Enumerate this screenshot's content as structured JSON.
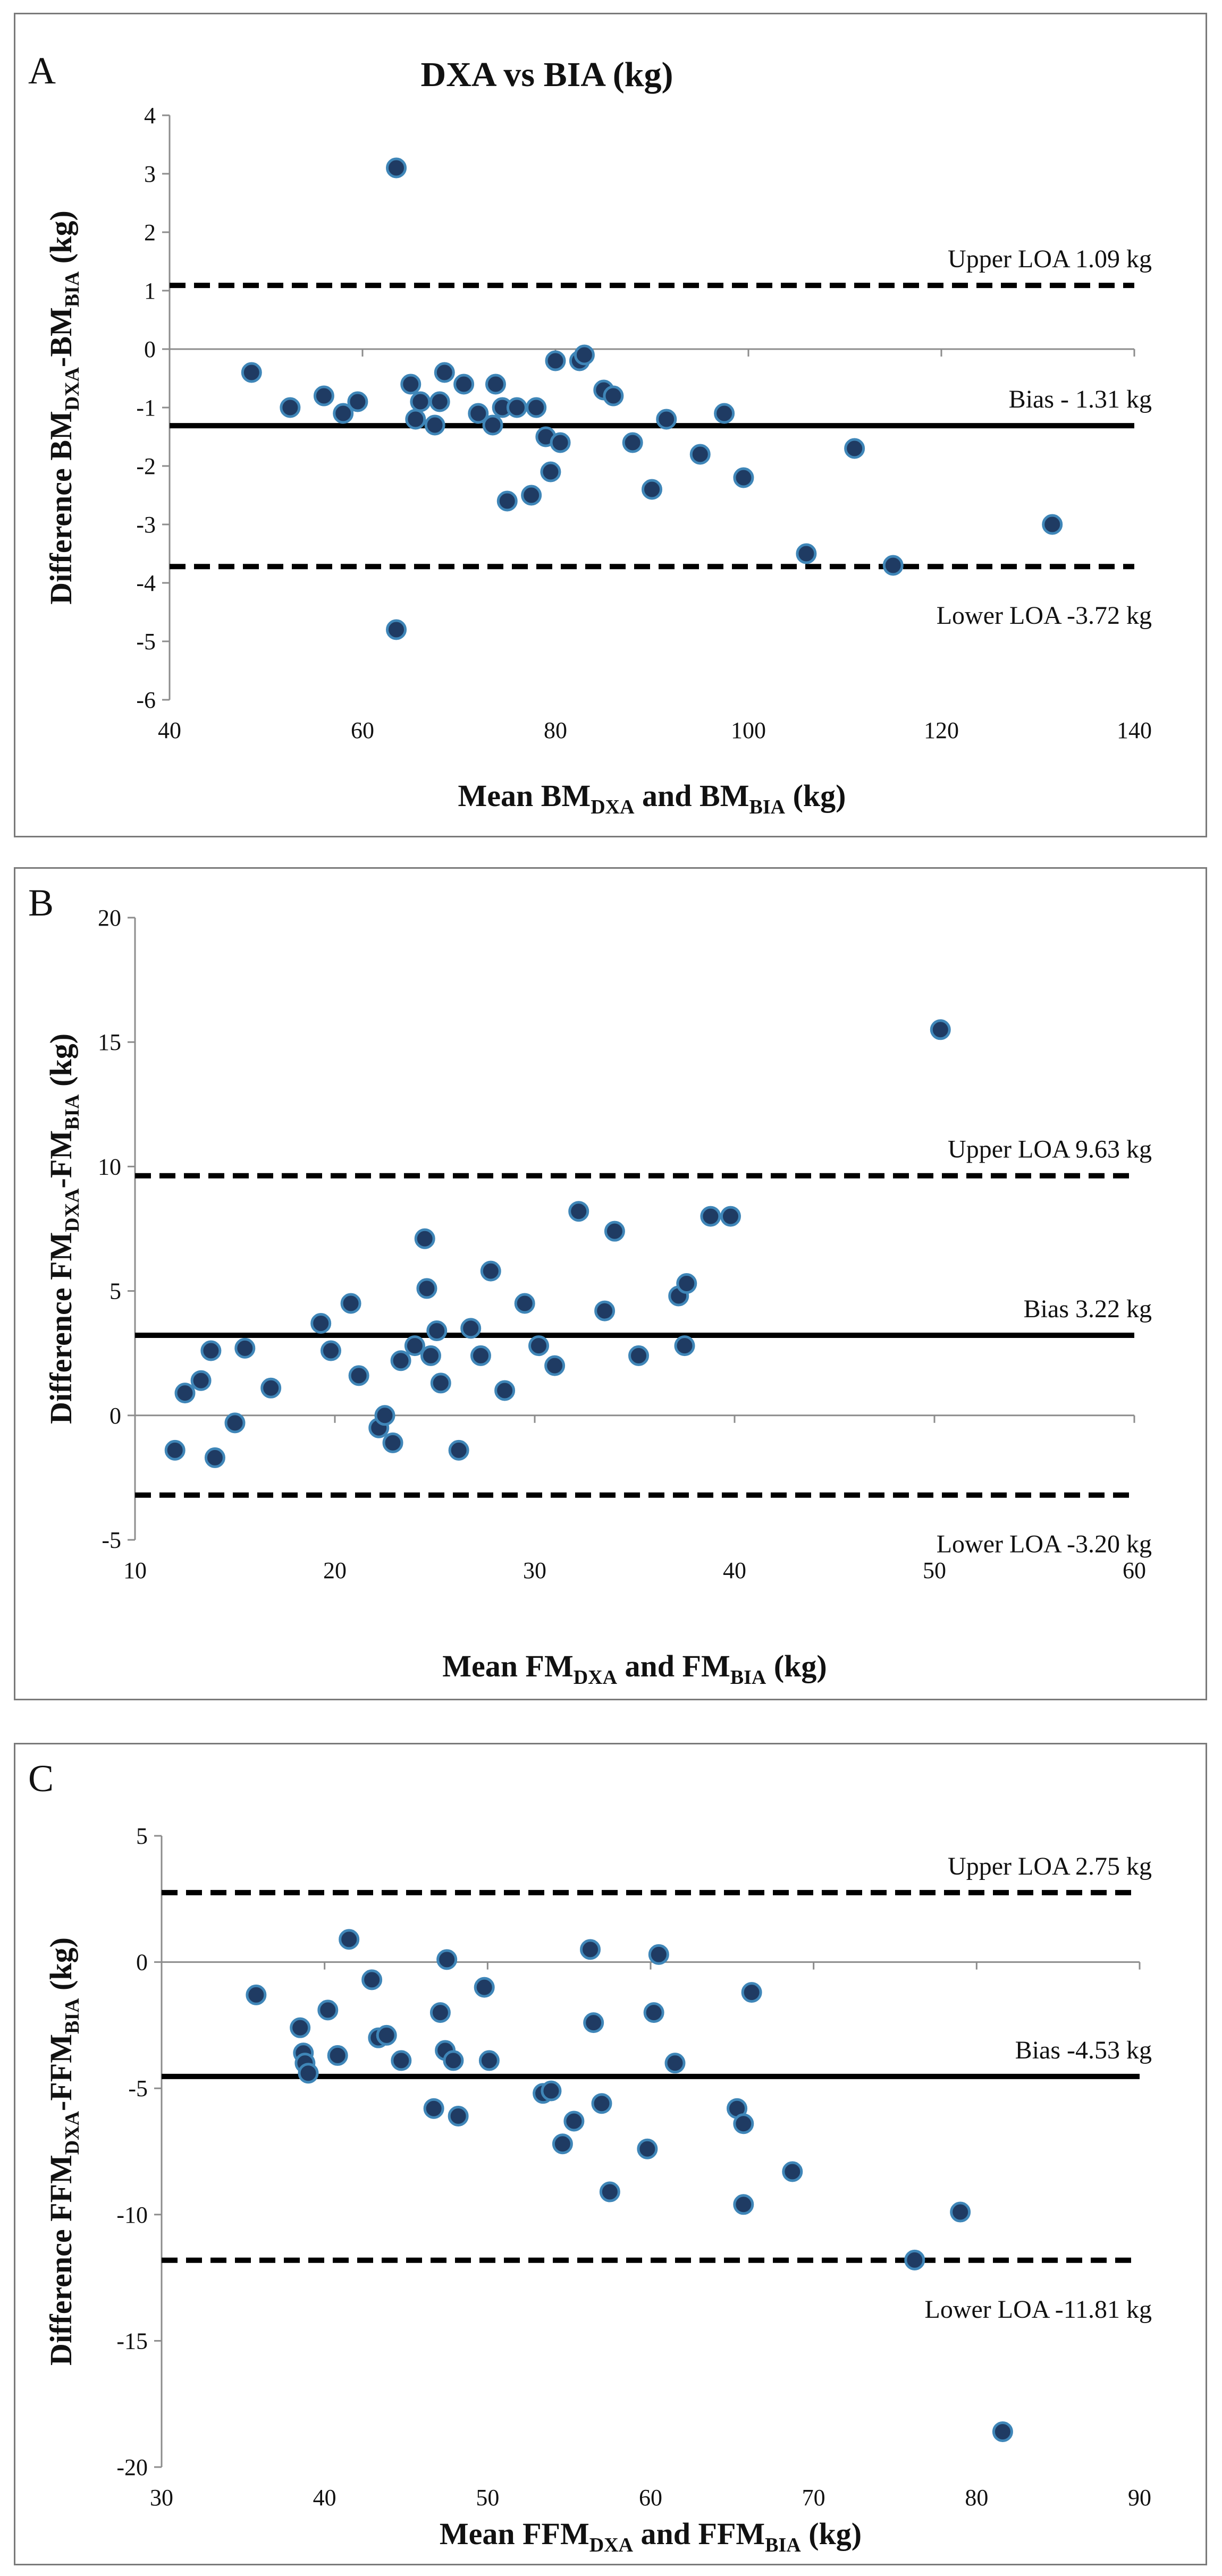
{
  "figure": {
    "title": "DXA vs BIA (kg)"
  },
  "colors": {
    "point_fill": "#1f3b63",
    "point_stroke": "#3f86b8",
    "line": "#000000",
    "axis": "#8c8c8c"
  },
  "chart_data": [
    {
      "type": "scatter",
      "panel_letter": "A",
      "title": "DXA vs BIA (kg)",
      "xlabel": {
        "main1": "Mean BM",
        "sub1": "DXA",
        "main2": " and BM",
        "sub2": "BIA",
        "tail": " (kg)"
      },
      "ylabel": {
        "main1": "Difference BM",
        "sub1": "DXA",
        "main2": "-BM",
        "sub2": "BIA",
        "tail": " (kg)"
      },
      "xlim": [
        40,
        140
      ],
      "ylim": [
        -6,
        4
      ],
      "xticks": [
        40,
        60,
        80,
        100,
        120,
        140
      ],
      "yticks": [
        -6,
        -5,
        -4,
        -3,
        -2,
        -1,
        0,
        1,
        2,
        3,
        4
      ],
      "xtick_labels": [
        "40",
        "60",
        "80",
        "100",
        "120",
        "140"
      ],
      "ytick_labels": [
        "-6",
        "-5",
        "-4",
        "-3",
        "-2",
        "-1",
        "0",
        "1",
        "2",
        "3",
        "4"
      ],
      "axis_at_y": 0,
      "lines": [
        {
          "kind": "upper",
          "value": 1.09,
          "label": "Upper LOA 1.09 kg"
        },
        {
          "kind": "bias",
          "value": -1.31,
          "label": "Bias - 1.31 kg"
        },
        {
          "kind": "lower",
          "value": -3.72,
          "label": "Lower LOA -3.72 kg"
        }
      ],
      "points": [
        [
          48.5,
          -0.4
        ],
        [
          52.5,
          -1.0
        ],
        [
          56.0,
          -0.8
        ],
        [
          58.0,
          -1.1
        ],
        [
          59.5,
          -0.9
        ],
        [
          63.5,
          3.1
        ],
        [
          63.5,
          -4.8
        ],
        [
          65.0,
          -0.6
        ],
        [
          65.5,
          -1.2
        ],
        [
          66.0,
          -0.9
        ],
        [
          67.5,
          -1.3
        ],
        [
          68.0,
          -0.9
        ],
        [
          68.5,
          -0.4
        ],
        [
          70.5,
          -0.6
        ],
        [
          72.0,
          -1.1
        ],
        [
          73.5,
          -1.3
        ],
        [
          73.8,
          -0.6
        ],
        [
          74.5,
          -1.0
        ],
        [
          75.0,
          -2.6
        ],
        [
          76.0,
          -1.0
        ],
        [
          77.5,
          -2.5
        ],
        [
          78.0,
          -1.0
        ],
        [
          79.0,
          -1.5
        ],
        [
          79.5,
          -2.1
        ],
        [
          80.0,
          -0.2
        ],
        [
          80.5,
          -1.6
        ],
        [
          82.5,
          -0.2
        ],
        [
          83.0,
          -0.1
        ],
        [
          85.0,
          -0.7
        ],
        [
          86.0,
          -0.8
        ],
        [
          88.0,
          -1.6
        ],
        [
          90.0,
          -2.4
        ],
        [
          91.5,
          -1.2
        ],
        [
          95.0,
          -1.8
        ],
        [
          97.5,
          -1.1
        ],
        [
          99.5,
          -2.2
        ],
        [
          106.0,
          -3.5
        ],
        [
          111.0,
          -1.7
        ],
        [
          115.0,
          -3.7
        ],
        [
          131.5,
          -3.0
        ]
      ]
    },
    {
      "type": "scatter",
      "panel_letter": "B",
      "xlabel": {
        "main1": "Mean FM",
        "sub1": "DXA",
        "main2": " and FM",
        "sub2": "BIA",
        "tail": " (kg)"
      },
      "ylabel": {
        "main1": "Difference FM",
        "sub1": "DXA",
        "main2": "-FM",
        "sub2": "BIA",
        "tail": " (kg)"
      },
      "xlim": [
        10,
        60
      ],
      "ylim": [
        -5,
        20
      ],
      "xticks": [
        10,
        20,
        30,
        40,
        50,
        60
      ],
      "yticks": [
        -5,
        0,
        5,
        10,
        15,
        20
      ],
      "xtick_labels": [
        "10",
        "20",
        "30",
        "40",
        "50",
        "60"
      ],
      "ytick_labels": [
        "-5",
        "0",
        "5",
        "10",
        "15",
        "20"
      ],
      "axis_at_y": 0,
      "lines": [
        {
          "kind": "upper",
          "value": 9.63,
          "label": "Upper LOA 9.63 kg"
        },
        {
          "kind": "bias",
          "value": 3.22,
          "label": "Bias 3.22 kg"
        },
        {
          "kind": "lower",
          "value": -3.2,
          "label": "Lower LOA -3.20 kg"
        }
      ],
      "points": [
        [
          12.0,
          -1.4
        ],
        [
          12.5,
          0.9
        ],
        [
          13.3,
          1.4
        ],
        [
          13.8,
          2.6
        ],
        [
          14.0,
          -1.7
        ],
        [
          15.0,
          -0.3
        ],
        [
          15.5,
          2.7
        ],
        [
          16.8,
          1.1
        ],
        [
          19.3,
          3.7
        ],
        [
          19.8,
          2.6
        ],
        [
          20.8,
          4.5
        ],
        [
          21.2,
          1.6
        ],
        [
          22.2,
          -0.5
        ],
        [
          22.5,
          0.0
        ],
        [
          22.9,
          -1.1
        ],
        [
          23.3,
          2.2
        ],
        [
          24.0,
          2.8
        ],
        [
          24.5,
          7.1
        ],
        [
          24.6,
          5.1
        ],
        [
          24.8,
          2.4
        ],
        [
          25.1,
          3.4
        ],
        [
          25.3,
          1.3
        ],
        [
          26.2,
          -1.4
        ],
        [
          26.8,
          3.5
        ],
        [
          27.3,
          2.4
        ],
        [
          27.8,
          5.8
        ],
        [
          28.5,
          1.0
        ],
        [
          29.5,
          4.5
        ],
        [
          30.2,
          2.8
        ],
        [
          31.0,
          2.0
        ],
        [
          32.2,
          8.2
        ],
        [
          33.5,
          4.2
        ],
        [
          34.0,
          7.4
        ],
        [
          35.2,
          2.4
        ],
        [
          37.2,
          4.8
        ],
        [
          37.5,
          2.8
        ],
        [
          37.6,
          5.3
        ],
        [
          38.8,
          8.0
        ],
        [
          39.8,
          8.0
        ],
        [
          50.3,
          15.5
        ]
      ]
    },
    {
      "type": "scatter",
      "panel_letter": "C",
      "xlabel": {
        "main1": "Mean FFM",
        "sub1": "DXA",
        "main2": " and FFM",
        "sub2": "BIA",
        "tail": " (kg)"
      },
      "ylabel": {
        "main1": "Difference FFM",
        "sub1": "DXA",
        "main2": "-FFM",
        "sub2": "BIA",
        "tail": " (kg)"
      },
      "xlim": [
        30,
        90
      ],
      "ylim": [
        -20,
        5
      ],
      "xticks": [
        30,
        40,
        50,
        60,
        70,
        80,
        90
      ],
      "yticks": [
        -20,
        -15,
        -10,
        -5,
        0,
        5
      ],
      "xtick_labels": [
        "30",
        "40",
        "50",
        "60",
        "70",
        "80",
        "90"
      ],
      "ytick_labels": [
        "-20",
        "-15",
        "-10",
        "-5",
        "0",
        "5"
      ],
      "axis_at_y": 0,
      "lines": [
        {
          "kind": "upper",
          "value": 2.75,
          "label": "Upper LOA 2.75 kg"
        },
        {
          "kind": "bias",
          "value": -4.53,
          "label": "Bias -4.53 kg"
        },
        {
          "kind": "lower",
          "value": -11.81,
          "label": "Lower LOA -11.81 kg"
        }
      ],
      "points": [
        [
          35.8,
          -1.3
        ],
        [
          38.5,
          -2.6
        ],
        [
          38.7,
          -3.6
        ],
        [
          38.8,
          -4.0
        ],
        [
          39.0,
          -4.4
        ],
        [
          40.2,
          -1.9
        ],
        [
          40.8,
          -3.7
        ],
        [
          41.5,
          0.9
        ],
        [
          42.9,
          -0.7
        ],
        [
          43.3,
          -3.0
        ],
        [
          43.8,
          -2.9
        ],
        [
          44.7,
          -3.9
        ],
        [
          46.7,
          -5.8
        ],
        [
          47.1,
          -2.0
        ],
        [
          47.4,
          -3.5
        ],
        [
          47.5,
          0.1
        ],
        [
          47.9,
          -3.9
        ],
        [
          48.2,
          -6.1
        ],
        [
          49.8,
          -1.0
        ],
        [
          50.1,
          -3.9
        ],
        [
          53.4,
          -5.2
        ],
        [
          53.9,
          -5.1
        ],
        [
          54.6,
          -7.2
        ],
        [
          55.3,
          -6.3
        ],
        [
          56.3,
          0.5
        ],
        [
          56.5,
          -2.4
        ],
        [
          57.0,
          -5.6
        ],
        [
          57.5,
          -9.1
        ],
        [
          59.8,
          -7.4
        ],
        [
          60.2,
          -2.0
        ],
        [
          60.5,
          0.3
        ],
        [
          61.5,
          -4.0
        ],
        [
          65.3,
          -5.8
        ],
        [
          65.7,
          -6.4
        ],
        [
          65.7,
          -9.6
        ],
        [
          66.2,
          -1.2
        ],
        [
          68.7,
          -8.3
        ],
        [
          76.2,
          -11.8
        ],
        [
          79.0,
          -9.9
        ],
        [
          81.6,
          -18.6
        ]
      ]
    }
  ]
}
